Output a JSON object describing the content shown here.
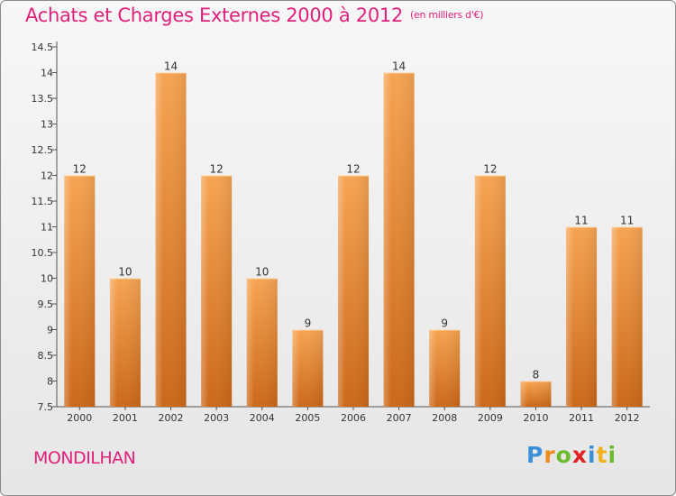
{
  "header": {
    "title": "Achats et Charges Externes 2000 à 2012",
    "subtitle": "(en milliers d'€)"
  },
  "footer": {
    "commune": "MONDILHAN",
    "logo_letters": [
      {
        "char": "P",
        "color": "#3a8fd8"
      },
      {
        "char": "r",
        "color": "#f08a1c"
      },
      {
        "char": "o",
        "color": "#6cbb2d"
      },
      {
        "char": "x",
        "color": "#e02424"
      },
      {
        "char": "i",
        "color": "#3a8fd8"
      },
      {
        "char": "t",
        "color": "#f0b21c"
      },
      {
        "char": "i",
        "color": "#6cbb2d"
      }
    ]
  },
  "colors": {
    "accent": "#e0207a",
    "bar_top": "#f6a452",
    "bar_bottom": "#cc6818",
    "axis": "#555555"
  },
  "chart_data": {
    "type": "bar",
    "categories": [
      "2000",
      "2001",
      "2002",
      "2003",
      "2004",
      "2005",
      "2006",
      "2007",
      "2008",
      "2009",
      "2010",
      "2011",
      "2012"
    ],
    "values": [
      12,
      10,
      14,
      12,
      10,
      9,
      12,
      14,
      9,
      12,
      8,
      11,
      11
    ],
    "value_labels": [
      "12",
      "10",
      "14",
      "12",
      "10",
      "9",
      "12",
      "14",
      "9",
      "12",
      "8",
      "11",
      "11"
    ],
    "yticks": [
      7.5,
      8,
      8.5,
      9,
      9.5,
      10,
      10.5,
      11,
      11.5,
      12,
      12.5,
      13,
      13.5,
      14,
      14.5
    ],
    "ytick_labels": [
      "7.5",
      "8",
      "8.5",
      "9",
      "9.5",
      "10",
      "10.5",
      "11",
      "11.5",
      "12",
      "12.5",
      "13",
      "13.5",
      "14",
      "14.5"
    ],
    "ylim": [
      7.5,
      14.5
    ],
    "grid": false,
    "legend": "none"
  }
}
